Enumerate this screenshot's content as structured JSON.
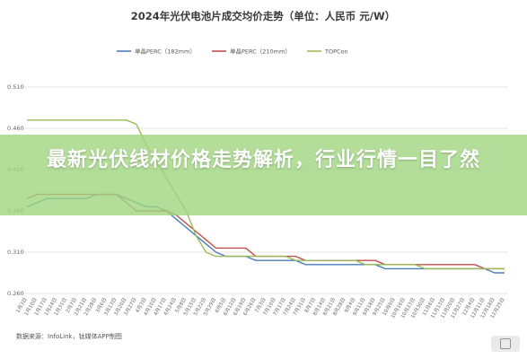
{
  "chart_data": {
    "type": "line",
    "title": "2024年光伏电池片成交均价走势（单位：人民币 元/W）",
    "xlabel": "",
    "ylabel": "",
    "ylim": [
      0.26,
      0.51
    ],
    "yticks": [
      "0.510",
      "0.460",
      "0.410",
      "0.360",
      "0.310",
      "0.260"
    ],
    "x": [
      "1月3日",
      "1月10日",
      "1月17日",
      "1月24日",
      "1月31日",
      "2月7日",
      "2月21日",
      "2月28日",
      "3月6日",
      "3月13日",
      "3月20日",
      "3月27日",
      "4月3日",
      "4月10日",
      "4月17日",
      "4月24日",
      "5月8日",
      "5月15日",
      "5月22日",
      "5月29日",
      "6月5日",
      "6月12日",
      "6月19日",
      "6月26日",
      "7月3日",
      "7月10日",
      "7月17日",
      "7月24日",
      "7月31日",
      "8月7日",
      "8月14日",
      "8月21日",
      "8月28日",
      "9月4日",
      "9月11日",
      "9月18日",
      "9月25日",
      "10月9日",
      "10月16日",
      "10月23日",
      "10月30日",
      "11月6日",
      "11月13日",
      "11月20日",
      "11月27日",
      "12月4日",
      "12月11日",
      "12月18日",
      "12月25日"
    ],
    "series": [
      {
        "name": "单晶PERC（182mm）",
        "color": "#4a7ebb",
        "values": [
          0.365,
          0.37,
          0.375,
          0.375,
          0.375,
          0.375,
          0.375,
          0.38,
          0.38,
          0.38,
          0.375,
          0.37,
          0.365,
          0.365,
          0.36,
          0.35,
          0.34,
          0.33,
          0.32,
          0.31,
          0.305,
          0.305,
          0.305,
          0.3,
          0.3,
          0.3,
          0.3,
          0.3,
          0.295,
          0.295,
          0.295,
          0.295,
          0.295,
          0.295,
          0.295,
          0.295,
          0.29,
          0.29,
          0.29,
          0.29,
          0.29,
          0.29,
          0.29,
          0.29,
          0.29,
          0.29,
          0.29,
          0.285,
          0.285
        ]
      },
      {
        "name": "单晶PERC（210mm）",
        "color": "#c0504d",
        "values": [
          0.375,
          0.38,
          0.38,
          0.38,
          0.38,
          0.38,
          0.38,
          0.38,
          0.38,
          0.38,
          0.37,
          0.36,
          0.36,
          0.36,
          0.36,
          0.355,
          0.345,
          0.335,
          0.325,
          0.315,
          0.315,
          0.315,
          0.315,
          0.305,
          0.305,
          0.305,
          0.305,
          0.305,
          0.3,
          0.3,
          0.3,
          0.3,
          0.3,
          0.3,
          0.3,
          0.3,
          0.295,
          0.295,
          0.295,
          0.295,
          0.295,
          0.295,
          0.295,
          0.295,
          0.295,
          0.295,
          0.29,
          0.29,
          0.29
        ]
      },
      {
        "name": "TOPCon",
        "color": "#9bbb59",
        "values": [
          0.47,
          0.47,
          0.47,
          0.47,
          0.47,
          0.47,
          0.47,
          0.47,
          0.47,
          0.47,
          0.47,
          0.465,
          0.44,
          0.42,
          0.4,
          0.38,
          0.36,
          0.33,
          0.31,
          0.305,
          0.305,
          0.305,
          0.305,
          0.305,
          0.305,
          0.305,
          0.305,
          0.3,
          0.3,
          0.3,
          0.3,
          0.3,
          0.3,
          0.3,
          0.295,
          0.295,
          0.295,
          0.295,
          0.295,
          0.295,
          0.29,
          0.29,
          0.29,
          0.29,
          0.29,
          0.29,
          0.29,
          0.29,
          0.29
        ]
      }
    ],
    "legend_position": "top-center",
    "grid": true
  },
  "source": "数据来源：InfoLink，钛媒体APP制图",
  "headline": "最新光伏线材价格走势解析，行业行情一目了然",
  "colors": {
    "banner": "#a0d680",
    "grid": "#e3e3e3"
  },
  "icons": {
    "watermark": "watermark-logo-icon"
  }
}
